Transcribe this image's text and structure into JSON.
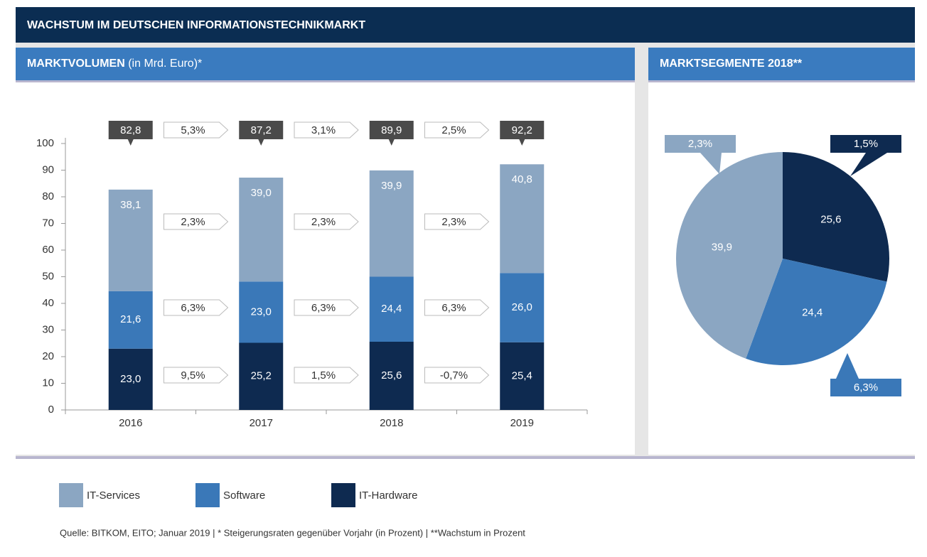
{
  "title": "WACHSTUM IM DEUTSCHEN INFORMATIONSTECHNIKMARKT",
  "chart_data": [
    {
      "type": "stacked-bar",
      "title": "MARKTVOLUMEN",
      "subtitle": "(in Mrd. Euro)*",
      "categories": [
        "2016",
        "2017",
        "2018",
        "2019"
      ],
      "series": [
        {
          "name": "IT-Services",
          "color": "#8ba6c2",
          "values": [
            38.1,
            39.0,
            39.9,
            40.8
          ],
          "value_labels": [
            "38,1",
            "39,0",
            "39,9",
            "40,8"
          ],
          "growth": [
            2.3,
            2.3,
            2.3
          ],
          "growth_labels": [
            "2,3%",
            "2,3%",
            "2,3%"
          ]
        },
        {
          "name": "Software",
          "color": "#3a78b8",
          "values": [
            21.6,
            23.0,
            24.4,
            26.0
          ],
          "value_labels": [
            "21,6",
            "23,0",
            "24,4",
            "26,0"
          ],
          "growth": [
            6.3,
            6.3,
            6.3
          ],
          "growth_labels": [
            "6,3%",
            "6,3%",
            "6,3%"
          ]
        },
        {
          "name": "IT-Hardware",
          "color": "#0e2a50",
          "values": [
            23.0,
            25.2,
            25.6,
            25.4
          ],
          "value_labels": [
            "23,0",
            "25,2",
            "25,6",
            "25,4"
          ],
          "growth": [
            9.5,
            1.5,
            -0.7
          ],
          "growth_labels": [
            "9,5%",
            "1,5%",
            "-0,7%"
          ]
        }
      ],
      "totals": [
        82.8,
        87.2,
        89.9,
        92.2
      ],
      "total_labels": [
        "82,8",
        "87,2",
        "89,9",
        "92,2"
      ],
      "total_growth": [
        5.3,
        3.1,
        2.5
      ],
      "total_growth_labels": [
        "5,3%",
        "3,1%",
        "2,5%"
      ],
      "ylim": [
        0,
        100
      ],
      "yticks": [
        0,
        10,
        20,
        30,
        40,
        50,
        60,
        70,
        80,
        90,
        100
      ]
    },
    {
      "type": "pie",
      "title": "MARKTSEGMENTE 2018**",
      "categories": [
        "IT-Hardware",
        "Software",
        "IT-Services"
      ],
      "values": [
        25.6,
        24.4,
        39.9
      ],
      "value_labels": [
        "25,6",
        "24,4",
        "39,9"
      ],
      "colors": [
        "#0e2a50",
        "#3a78b8",
        "#8ba6c2"
      ],
      "growth": [
        1.5,
        6.3,
        2.3
      ],
      "growth_labels": [
        "1,5%",
        "6,3%",
        "2,3%"
      ]
    }
  ],
  "source": "Quelle: BITKOM, EITO; Januar 2019 | * Steigerungsraten gegenüber Vorjahr (in Prozent) | **Wachstum in Prozent"
}
